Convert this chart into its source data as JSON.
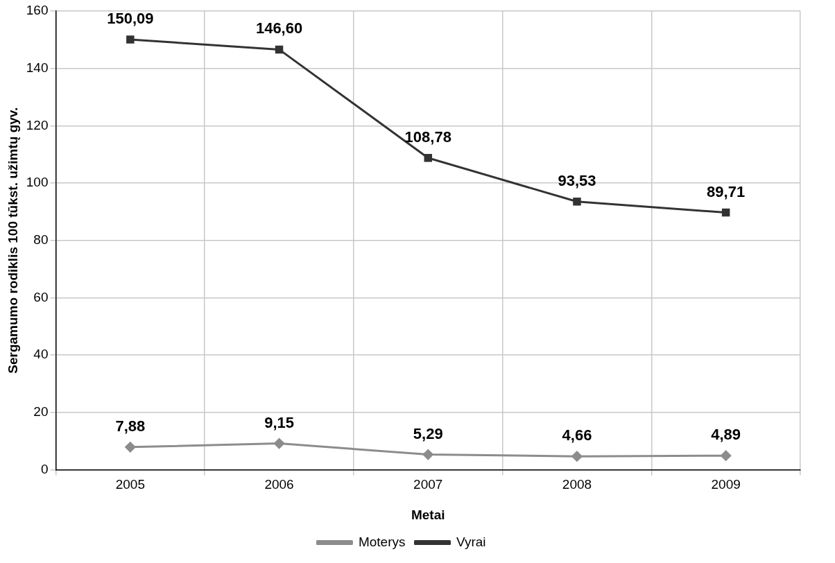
{
  "chart_data": {
    "type": "line",
    "xlabel": "Metai",
    "ylabel": "Sergamumo rodiklis 100 tūkst. užimtų gyv.",
    "categories": [
      "2005",
      "2006",
      "2007",
      "2008",
      "2009"
    ],
    "series": [
      {
        "name": "Moterys",
        "color": "#8c8c8c",
        "marker": "diamond",
        "values": [
          7.88,
          9.15,
          5.29,
          4.66,
          4.89
        ],
        "value_labels": [
          "7,88",
          "9,15",
          "5,29",
          "4,66",
          "4,89"
        ]
      },
      {
        "name": "Vyrai",
        "color": "#333333",
        "marker": "square",
        "values": [
          150.09,
          146.6,
          108.78,
          93.53,
          89.71
        ],
        "value_labels": [
          "150,09",
          "146,60",
          "108,78",
          "93,53",
          "89,71"
        ]
      }
    ],
    "ylim": [
      0,
      160
    ],
    "yticks": [
      0,
      20,
      40,
      60,
      80,
      100,
      120,
      140,
      160
    ],
    "grid": true,
    "legend": "bottom"
  }
}
